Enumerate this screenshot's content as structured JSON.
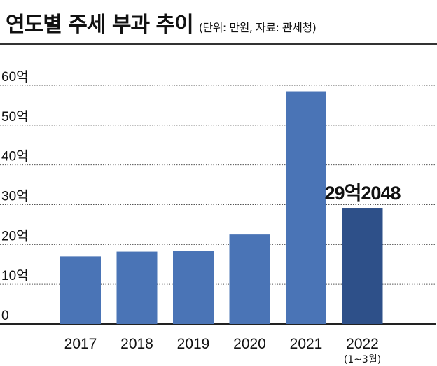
{
  "header": {
    "title": "연도별 주세 부과 추이",
    "subtitle": "(단위: 만원, 자료: 관세청)"
  },
  "chart_data": {
    "type": "bar",
    "title": "연도별 주세 부과 추이",
    "subtitle": "(단위: 만원, 자료: 관세청)",
    "categories": [
      "2017",
      "2018",
      "2019",
      "2020",
      "2021",
      "2022"
    ],
    "category_sublabels": [
      "",
      "",
      "",
      "",
      "",
      "(1~3월)"
    ],
    "values": [
      170000,
      182000,
      184000,
      225000,
      585000,
      292048
    ],
    "y_tick_values": [
      0,
      100000,
      200000,
      300000,
      400000,
      500000,
      600000
    ],
    "y_tick_labels": [
      "0",
      "10억",
      "20억",
      "30억",
      "40억",
      "50억",
      "60억"
    ],
    "ylim": [
      0,
      600000
    ],
    "grid": true,
    "grid_style": "dotted",
    "data_labels": [
      {
        "category": "2022",
        "text": "29억2048"
      }
    ],
    "colors": {
      "bar": "#4a74b6",
      "bar_highlight": "#2e5089",
      "grid": "#555555",
      "axis": "#222222"
    },
    "highlight_index": 5
  }
}
